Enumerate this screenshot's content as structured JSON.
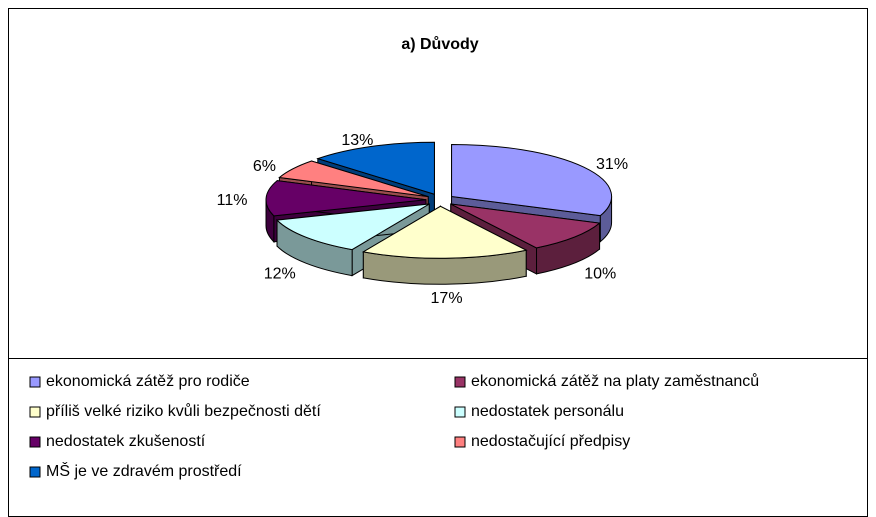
{
  "chart_data": {
    "type": "pie",
    "title": "a) Důvody",
    "categories": [
      "ekonomická zátěž pro rodiče",
      "ekonomická zátěž na platy zaměstnanců",
      "příliš velké riziko kvůli bezpečnosti dětí",
      "nedostatek personálu",
      "nedostatek zkušeností",
      "nedostačující předpisy",
      "MŠ je ve zdravém prostředí"
    ],
    "values": [
      31,
      10,
      17,
      12,
      11,
      6,
      13
    ],
    "value_labels": [
      "31%",
      "10%",
      "17%",
      "12%",
      "11%",
      "6%",
      "13%"
    ],
    "colors": [
      "#9999ff",
      "#993366",
      "#ffffcc",
      "#ccffff",
      "#660066",
      "#ff8080",
      "#0066cc"
    ],
    "legend": "bottom"
  }
}
